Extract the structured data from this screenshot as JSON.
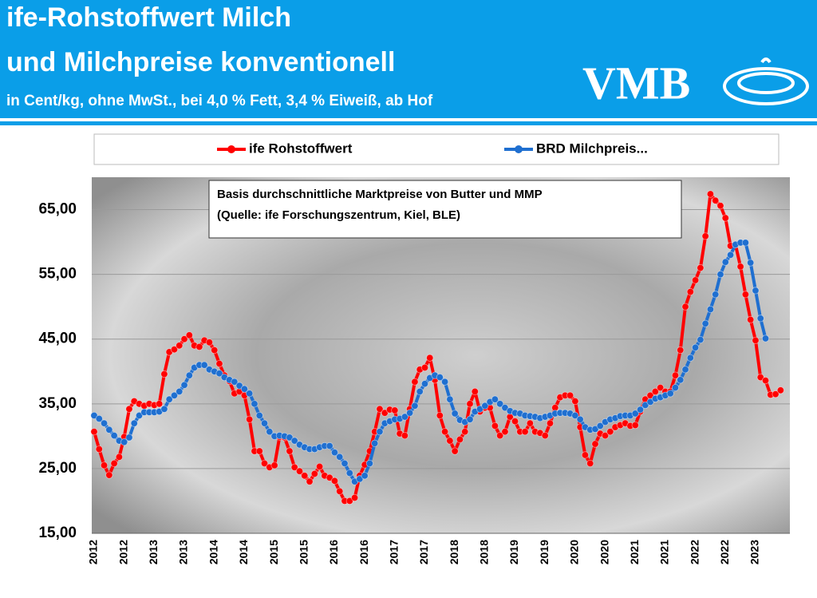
{
  "header": {
    "title_line1": "ife-Rohstoffwert Milch",
    "title_line2": "und Milchpreise konventionell",
    "subtitle": "in Cent/kg, ohne MwSt., bei 4,0 % Fett, 3,4 % Eiweiß, ab Hof",
    "logo": "VMB"
  },
  "chart_data": {
    "type": "line",
    "annotation": [
      "Basis durchschnittliche Marktpreise von Butter und MMP",
      "(Quelle: ife Forschungszentrum, Kiel, BLE)"
    ],
    "categories": [
      "2012",
      null,
      null,
      null,
      null,
      null,
      "2012",
      null,
      null,
      null,
      null,
      null,
      "2013",
      null,
      null,
      null,
      null,
      null,
      "2013",
      null,
      null,
      null,
      null,
      null,
      "2014",
      null,
      null,
      null,
      null,
      null,
      "2014",
      null,
      null,
      null,
      null,
      null,
      "2015",
      null,
      null,
      null,
      null,
      null,
      "2015",
      null,
      null,
      null,
      null,
      null,
      "2016",
      null,
      null,
      null,
      null,
      null,
      "2016",
      null,
      null,
      null,
      null,
      null,
      "2017",
      null,
      null,
      null,
      null,
      null,
      "2017",
      null,
      null,
      null,
      null,
      null,
      "2018",
      null,
      null,
      null,
      null,
      null,
      "2018",
      null,
      null,
      null,
      null,
      null,
      "2019",
      null,
      null,
      null,
      null,
      null,
      "2019",
      null,
      null,
      null,
      null,
      null,
      "2020",
      null,
      null,
      null,
      null,
      null,
      "2020",
      null,
      null,
      null,
      null,
      null,
      "2021",
      null,
      null,
      null,
      null,
      null,
      "2021",
      null,
      null,
      null,
      null,
      null,
      "2022",
      null,
      null,
      null,
      null,
      null,
      "2022",
      null,
      null,
      null,
      null,
      null,
      "2023",
      null,
      null,
      null,
      null,
      null
    ],
    "series": [
      {
        "name": "ife Rohstoffwert",
        "color": "#ff0000",
        "values": [
          30.7,
          28,
          25.5,
          24,
          25.8,
          26.8,
          29.9,
          34.2,
          35.4,
          35,
          34.7,
          35,
          34.8,
          35,
          39.6,
          43,
          43.4,
          44,
          45,
          45.6,
          44,
          43.8,
          44.8,
          44.5,
          43.3,
          41.2,
          39.4,
          38.5,
          36.6,
          36.9,
          36.3,
          32.6,
          27.7,
          27.7,
          25.8,
          25.2,
          25.5,
          29.9,
          29.8,
          27.7,
          25.2,
          24.6,
          23.9,
          23,
          24.2,
          25.3,
          23.9,
          23.6,
          23.1,
          21.5,
          20,
          20,
          20.5,
          23.9,
          25.6,
          27.7,
          30.7,
          34.2,
          33.6,
          34.1,
          34,
          30.4,
          30.1,
          34.2,
          38.4,
          40.3,
          40.6,
          42.1,
          38.7,
          33.2,
          30.7,
          29.3,
          27.7,
          29.5,
          30.7,
          35,
          36.9,
          33.8,
          34.4,
          34.4,
          31.6,
          30.1,
          30.7,
          33,
          32.3,
          30.7,
          30.7,
          32,
          30.7,
          30.5,
          30.1,
          32,
          34.4,
          36,
          36.3,
          36.3,
          35.4,
          31.4,
          27.1,
          25.8,
          28.8,
          30.4,
          30.1,
          30.7,
          31.4,
          31.7,
          32,
          31.6,
          31.7,
          33.8,
          35.7,
          36.3,
          36.9,
          37.5,
          36.9,
          36.9,
          39.4,
          43.3,
          50,
          52.3,
          54.1,
          56,
          60.9,
          67.4,
          66.4,
          65.6,
          63.7,
          59.4,
          59.6,
          56.2,
          51.9,
          48,
          44.8,
          39.1,
          38.6,
          36.4,
          36.5,
          37.1
        ]
      },
      {
        "name": "BRD Milchpreis...",
        "color": "#1f6fd0",
        "values": [
          33.2,
          32.7,
          32,
          31,
          30.1,
          29.3,
          29.1,
          29.8,
          32,
          33.2,
          33.7,
          33.7,
          33.7,
          33.8,
          34.2,
          35.7,
          36.3,
          36.9,
          37.9,
          39.4,
          40.6,
          41,
          41,
          40.3,
          40,
          39.7,
          39.1,
          38.7,
          38.4,
          37.8,
          37.3,
          36.6,
          35,
          33.2,
          32,
          30.7,
          30,
          30.1,
          30,
          29.8,
          29.3,
          28.7,
          28.3,
          28,
          28,
          28.3,
          28.5,
          28.5,
          27.5,
          26.8,
          25.8,
          24.3,
          23,
          23.4,
          23.9,
          25.8,
          28.9,
          30.7,
          32,
          32.3,
          32.6,
          32.7,
          33,
          33.6,
          34.7,
          36.9,
          38.1,
          39,
          39.4,
          39.1,
          38.4,
          35.7,
          33.5,
          32.5,
          32.2,
          32.6,
          33.8,
          34.2,
          34.7,
          35.3,
          35.7,
          35,
          34.4,
          33.9,
          33.6,
          33.5,
          33.2,
          33.1,
          33,
          32.8,
          33,
          33.2,
          33.5,
          33.6,
          33.6,
          33.5,
          33.2,
          32.6,
          31.4,
          31,
          31.1,
          31.6,
          32.2,
          32.6,
          32.8,
          33.1,
          33.2,
          33.2,
          33.5,
          34.1,
          34.8,
          35.3,
          35.8,
          36,
          36.3,
          36.6,
          37.5,
          38.7,
          40.3,
          42.1,
          43.7,
          44.9,
          47.4,
          49.6,
          51.9,
          55,
          56.9,
          58,
          59.6,
          59.9,
          59.9,
          56.8,
          52.5,
          48.2,
          45.1,
          null,
          null,
          null
        ]
      }
    ],
    "ylim": [
      15,
      70
    ],
    "yticks": [
      {
        "value": 15,
        "label": "15,00"
      },
      {
        "value": 25,
        "label": "25,00"
      },
      {
        "value": 35,
        "label": "35,00"
      },
      {
        "value": 45,
        "label": "45,00"
      },
      {
        "value": 55,
        "label": "55,00"
      },
      {
        "value": 65,
        "label": "65,00"
      }
    ],
    "grid": true,
    "legend": "top"
  }
}
